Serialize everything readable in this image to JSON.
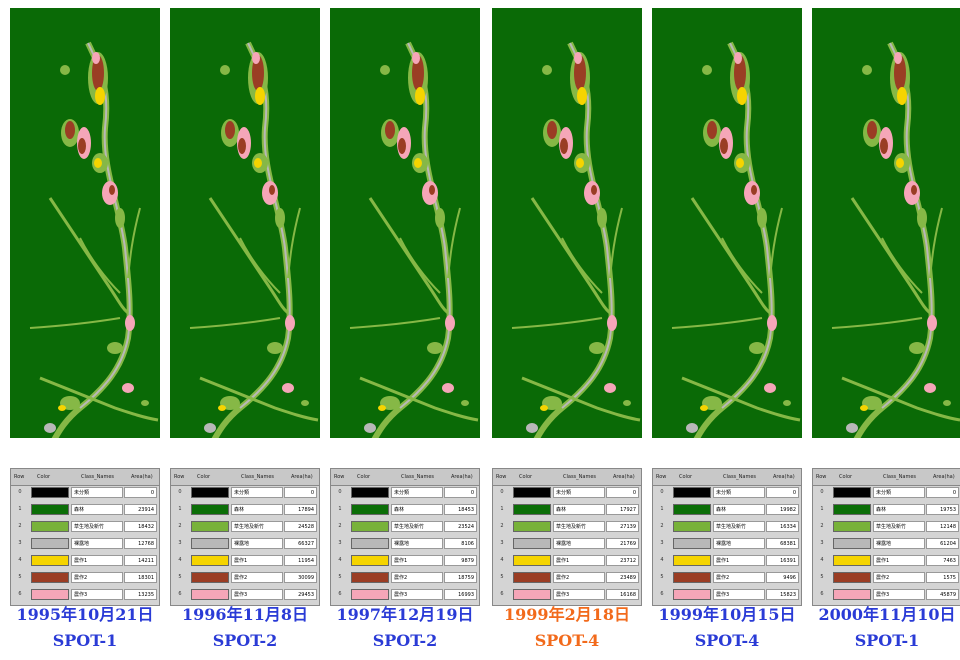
{
  "colors": {
    "background": "#0a6a06",
    "date_text": "#2a3bd6",
    "date_text_highlight": "#f26a1b"
  },
  "legend_header": {
    "row": "Row",
    "color": "Color",
    "class_names": "Class_Names",
    "area": "Area(ha)"
  },
  "legend_classes": [
    {
      "row": "0",
      "name": "未分類",
      "color": "#000000"
    },
    {
      "row": "1",
      "name": "森林",
      "color": "#0b6e07"
    },
    {
      "row": "2",
      "name": "草生地及新竹",
      "color": "#78b23a"
    },
    {
      "row": "3",
      "name": "裸露地",
      "color": "#b8b8b8"
    },
    {
      "row": "4",
      "name": "農作1",
      "color": "#f5d400"
    },
    {
      "row": "5",
      "name": "農作2",
      "color": "#9a3d24"
    },
    {
      "row": "6",
      "name": "農作3",
      "color": "#f5a6b8"
    }
  ],
  "panels": [
    {
      "date": "1995年10月21日",
      "satellite": "SPOT-1",
      "highlight": false,
      "areas": [
        "0",
        "23914",
        "18432",
        "12768",
        "14211",
        "18301",
        "13235"
      ]
    },
    {
      "date": "1996年11月8日",
      "satellite": "SPOT-2",
      "highlight": false,
      "areas": [
        "0",
        "17894",
        "24528",
        "66327",
        "11954",
        "30099",
        "29453"
      ]
    },
    {
      "date": "1997年12月19日",
      "satellite": "SPOT-2",
      "highlight": false,
      "areas": [
        "0",
        "18453",
        "23524",
        "8106",
        "9879",
        "18759",
        "16993"
      ]
    },
    {
      "date": "1999年2月18日",
      "satellite": "SPOT-4",
      "highlight": true,
      "areas": [
        "0",
        "17927",
        "27139",
        "21769",
        "23712",
        "23489",
        "16168"
      ]
    },
    {
      "date": "1999年10月15日",
      "satellite": "SPOT-4",
      "highlight": false,
      "areas": [
        "0",
        "19982",
        "16334",
        "68381",
        "16391",
        "9496",
        "15823"
      ]
    },
    {
      "date": "2000年11月10日",
      "satellite": "SPOT-1",
      "highlight": false,
      "areas": [
        "0",
        "19753",
        "12148",
        "61204",
        "7463",
        "1575",
        "45879"
      ]
    }
  ]
}
